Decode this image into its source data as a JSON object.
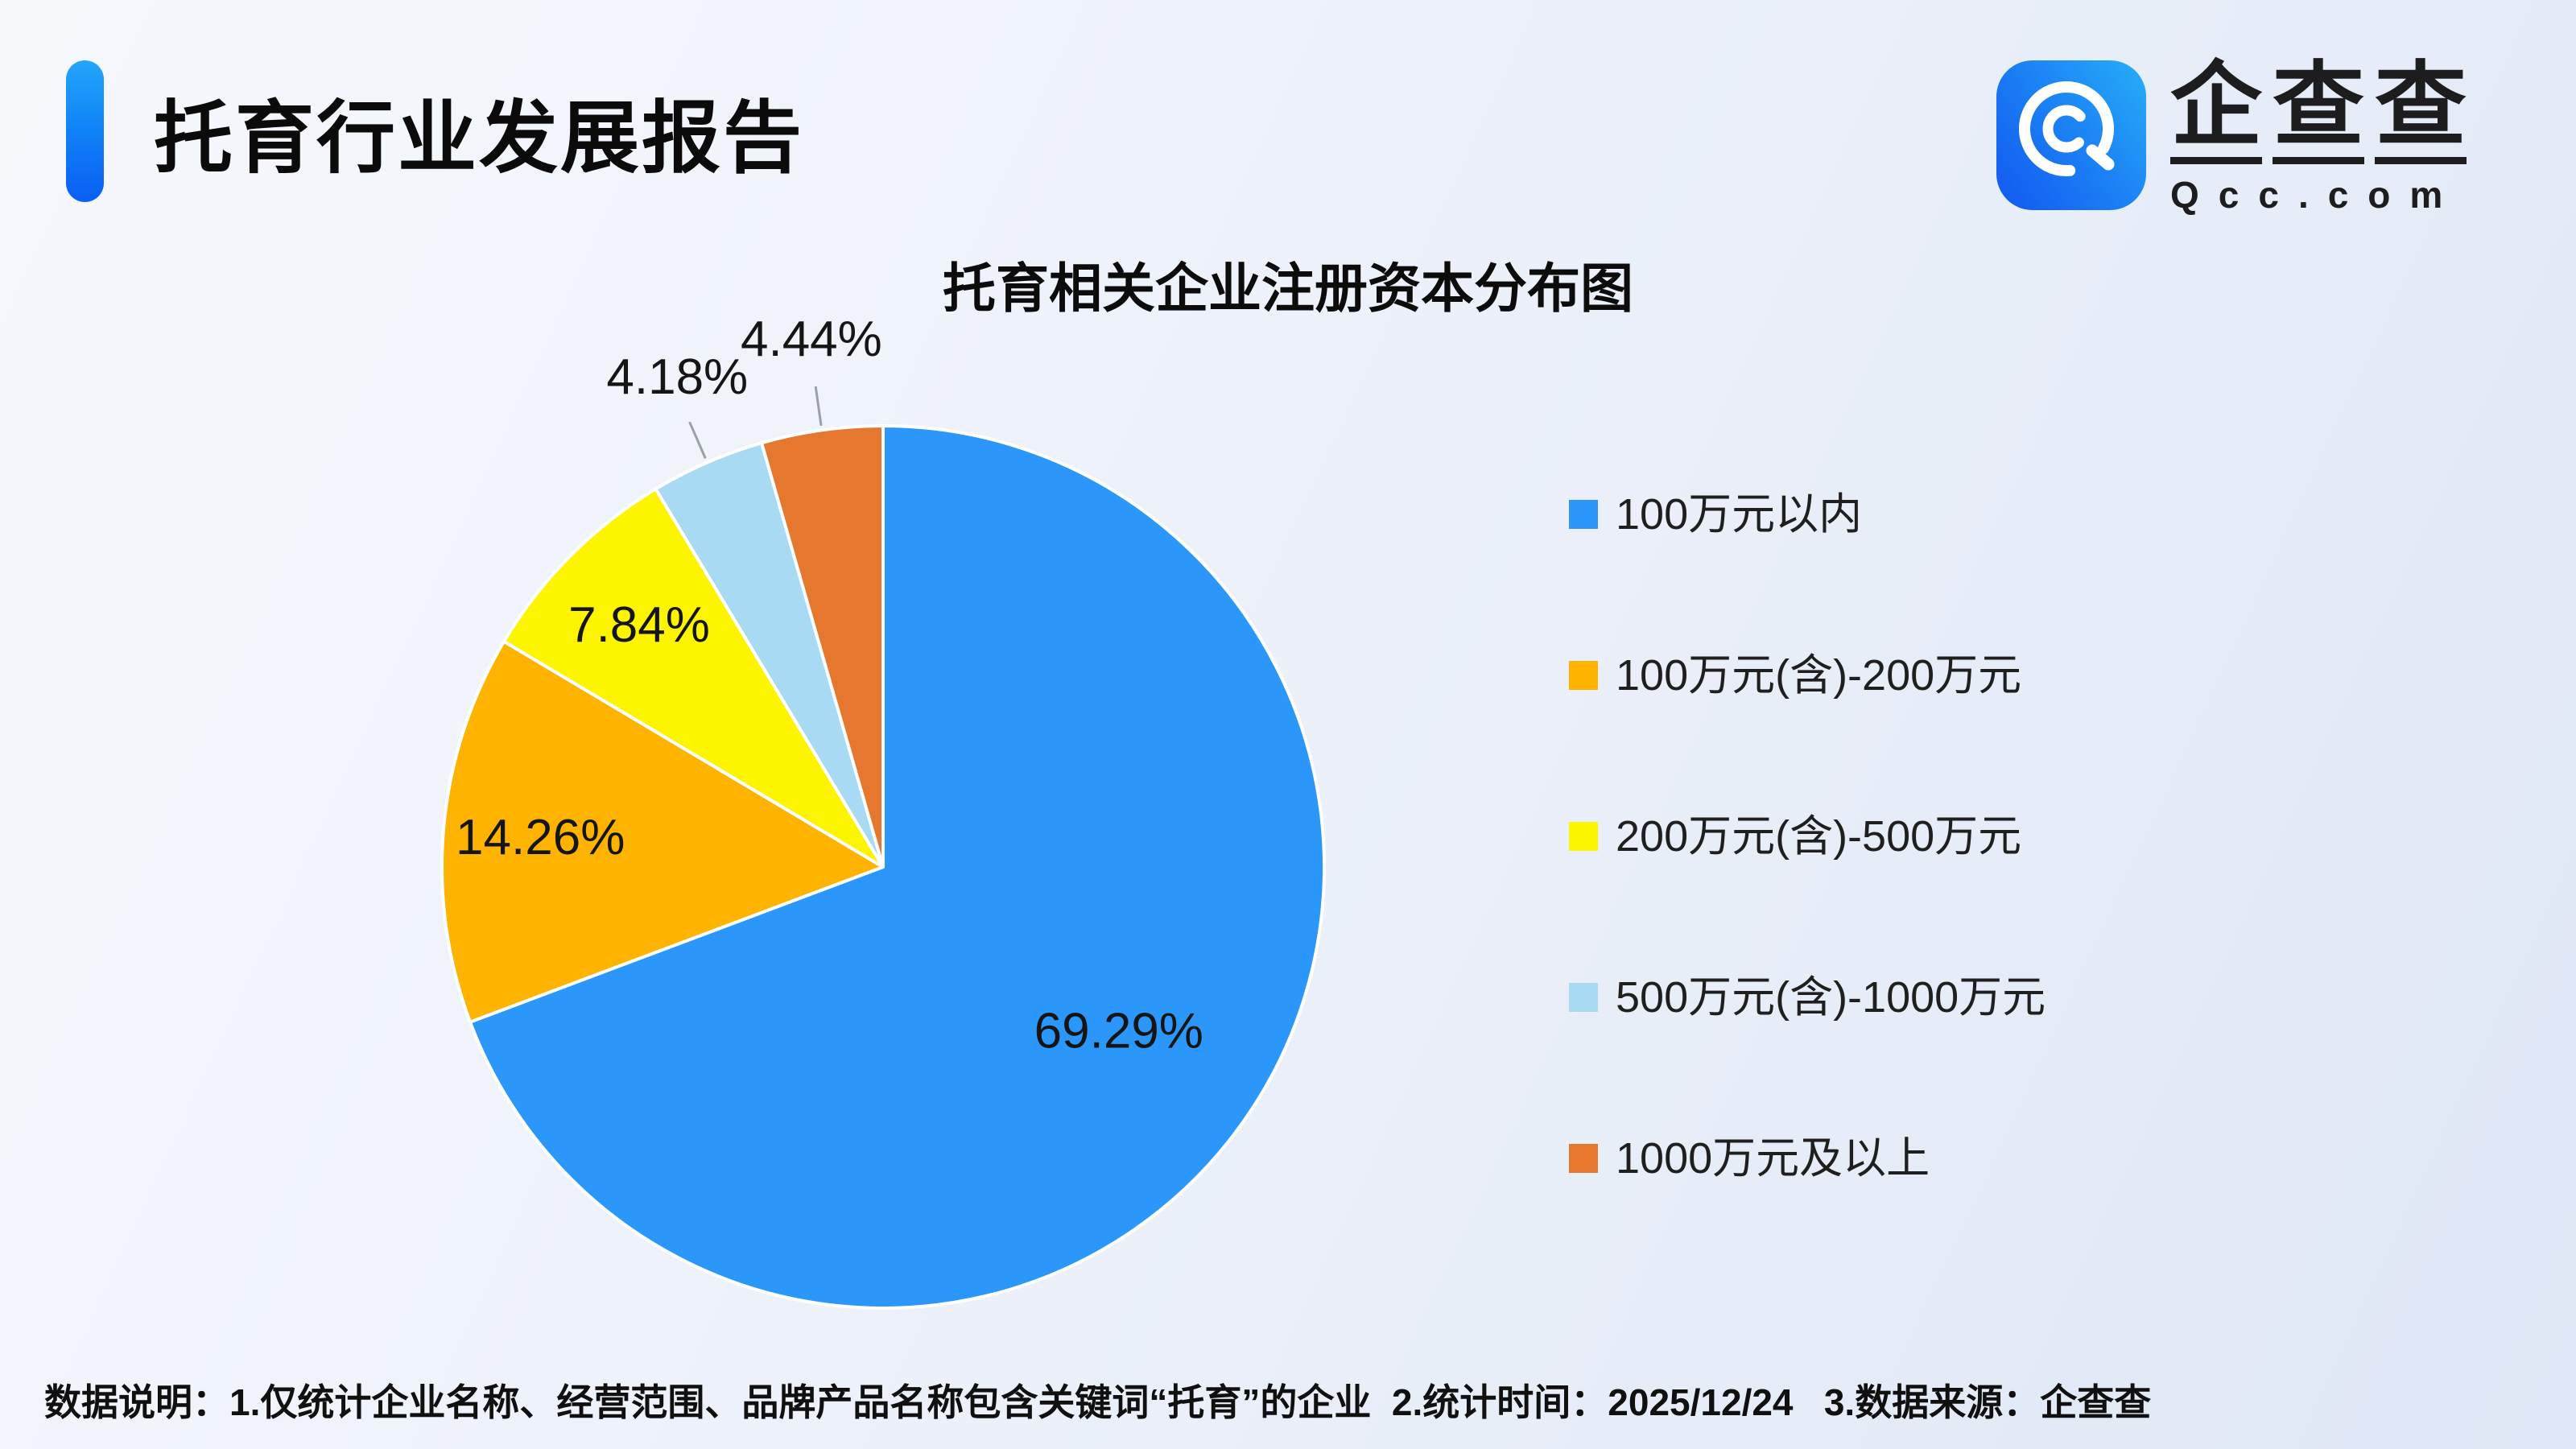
{
  "header": {
    "title": "托育行业发展报告"
  },
  "logo": {
    "brand_chars": [
      "企",
      "查",
      "查"
    ],
    "domain": "Qcc.com",
    "icon": "qcc-magnifier-icon",
    "icon_gradient": [
      "#1257F0",
      "#27AEF8"
    ]
  },
  "chart": {
    "title": "托育相关企业注册资本分布图"
  },
  "chart_data": {
    "type": "pie",
    "title": "托育相关企业注册资本分布图",
    "categories": [
      "100万元以内",
      "100万元(含)-200万元",
      "200万元(含)-500万元",
      "500万元(含)-1000万元",
      "1000万元及以上"
    ],
    "values": [
      69.29,
      14.26,
      7.84,
      4.18,
      4.44
    ],
    "labels": [
      "69.29%",
      "14.26%",
      "7.84%",
      "4.18%",
      "4.44%"
    ],
    "unit": "%",
    "colors": [
      "#2B97FA",
      "#FEB301",
      "#FDF400",
      "#A9DAF3",
      "#E5772F"
    ],
    "start_angle_deg": 0,
    "direction": "clockwise",
    "legend_position": "right",
    "slice_border_color": "#FFFFFF",
    "leader_line_color": "#9AA0A6"
  },
  "footer": {
    "note": "数据说明：1.仅统计企业名称、经营范围、品牌产品名称包含关键词“托育”的企业  2.统计时间：2025/12/24   3.数据来源：企查查"
  },
  "colors": {
    "accent_blue": "#0A5EF4",
    "background": "#EDF1F9",
    "text": "#111111"
  }
}
